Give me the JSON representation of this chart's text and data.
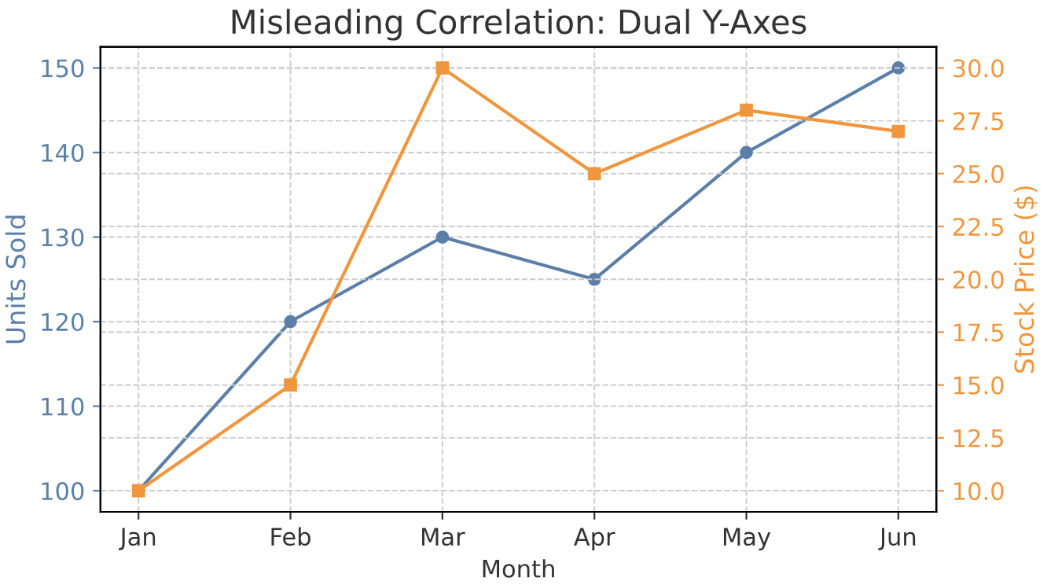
{
  "chart_data": {
    "type": "line",
    "title": "Misleading Correlation: Dual Y-Axes",
    "xlabel": "Month",
    "ylabel": "Units Sold",
    "y2label": "Stock Price ($)",
    "categories": [
      "Jan",
      "Feb",
      "Mar",
      "Apr",
      "May",
      "Jun"
    ],
    "series": [
      {
        "color": "#5b7fa9",
        "marker": "circle",
        "values": [
          100,
          120,
          130,
          125,
          140,
          150
        ]
      },
      {
        "color": "#f0963c",
        "marker": "square",
        "axis": "y2",
        "values": [
          10,
          15,
          30,
          25,
          28,
          27
        ]
      }
    ],
    "ylim": [
      97.5,
      152.5
    ],
    "yticks": [
      100,
      110,
      120,
      130,
      140,
      150
    ],
    "y2lim": [
      9,
      31
    ],
    "y2ticks": [
      {
        "value": 10,
        "label": "10.0"
      },
      {
        "value": 12.5,
        "label": "12.5"
      },
      {
        "value": 15,
        "label": "15.0"
      },
      {
        "value": 17.5,
        "label": "17.5"
      },
      {
        "value": 20,
        "label": "20.0"
      },
      {
        "value": 22.5,
        "label": "22.5"
      },
      {
        "value": 25,
        "label": "25.0"
      },
      {
        "value": 27.5,
        "label": "27.5"
      },
      {
        "value": 30,
        "label": "30.0"
      }
    ],
    "grid": true,
    "line_style": "solid"
  }
}
